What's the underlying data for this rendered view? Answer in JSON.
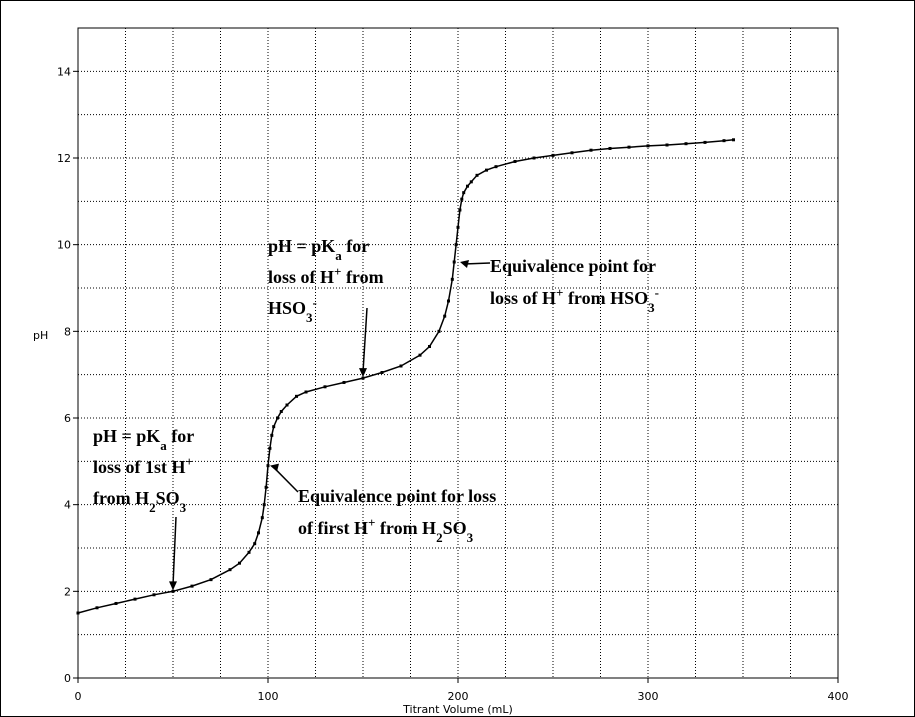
{
  "chart_data": {
    "type": "line",
    "xlabel": "Titrant Volume (mL)",
    "ylabel": "pH",
    "xlim": [
      0,
      400
    ],
    "ylim": [
      0,
      15
    ],
    "grid": true,
    "x_ticks": [
      "0",
      "100",
      "200",
      "300",
      "400"
    ],
    "y_ticks": [
      "0",
      "2",
      "4",
      "6",
      "8",
      "10",
      "12",
      "14"
    ],
    "series": [
      {
        "x": [
          0,
          10,
          20,
          30,
          40,
          50,
          60,
          70,
          80,
          85,
          90,
          93,
          95,
          97,
          98,
          99,
          100,
          101,
          102,
          103,
          105,
          107,
          110,
          115,
          120,
          130,
          140,
          150,
          160,
          170,
          180,
          185,
          190,
          193,
          195,
          197,
          198,
          199,
          200,
          201,
          202,
          203,
          205,
          207,
          210,
          215,
          220,
          230,
          240,
          250,
          260,
          270,
          280,
          290,
          300,
          310,
          320,
          330,
          340,
          345
        ],
        "y": [
          1.5,
          1.62,
          1.72,
          1.82,
          1.92,
          2.0,
          2.12,
          2.27,
          2.5,
          2.65,
          2.9,
          3.1,
          3.35,
          3.7,
          4.0,
          4.4,
          4.9,
          5.3,
          5.6,
          5.8,
          6.0,
          6.15,
          6.3,
          6.5,
          6.6,
          6.72,
          6.82,
          6.92,
          7.05,
          7.2,
          7.45,
          7.65,
          8.0,
          8.35,
          8.7,
          9.2,
          9.6,
          10.0,
          10.4,
          10.8,
          11.05,
          11.2,
          11.35,
          11.45,
          11.6,
          11.72,
          11.8,
          11.92,
          12.0,
          12.06,
          12.12,
          12.18,
          12.22,
          12.25,
          12.28,
          12.3,
          12.33,
          12.36,
          12.4,
          12.42
        ]
      }
    ],
    "annotations": [
      {
        "lines": [
          [
            "pH = pK",
            "a",
            " for"
          ],
          [
            "loss of 1st H",
            "+",
            ""
          ],
          [
            "from H",
            "2",
            "SO",
            "3"
          ]
        ],
        "target": [
          50,
          2.0
        ]
      },
      {
        "lines": [
          [
            "pH = pK",
            "a",
            " for"
          ],
          [
            "loss of H",
            "+",
            " from"
          ],
          [
            "HSO",
            "3",
            "-"
          ]
        ],
        "target": [
          150,
          6.92
        ]
      },
      {
        "lines": [
          [
            "Equivalence point for loss"
          ],
          [
            "of first H",
            "+",
            " from H",
            "2",
            "SO",
            "3"
          ]
        ],
        "target": [
          100,
          4.9
        ]
      },
      {
        "lines": [
          [
            "Equivalence point for"
          ],
          [
            "loss of H",
            "+",
            " from HSO",
            "3",
            "-"
          ]
        ],
        "target": [
          200,
          9.6
        ]
      }
    ]
  }
}
